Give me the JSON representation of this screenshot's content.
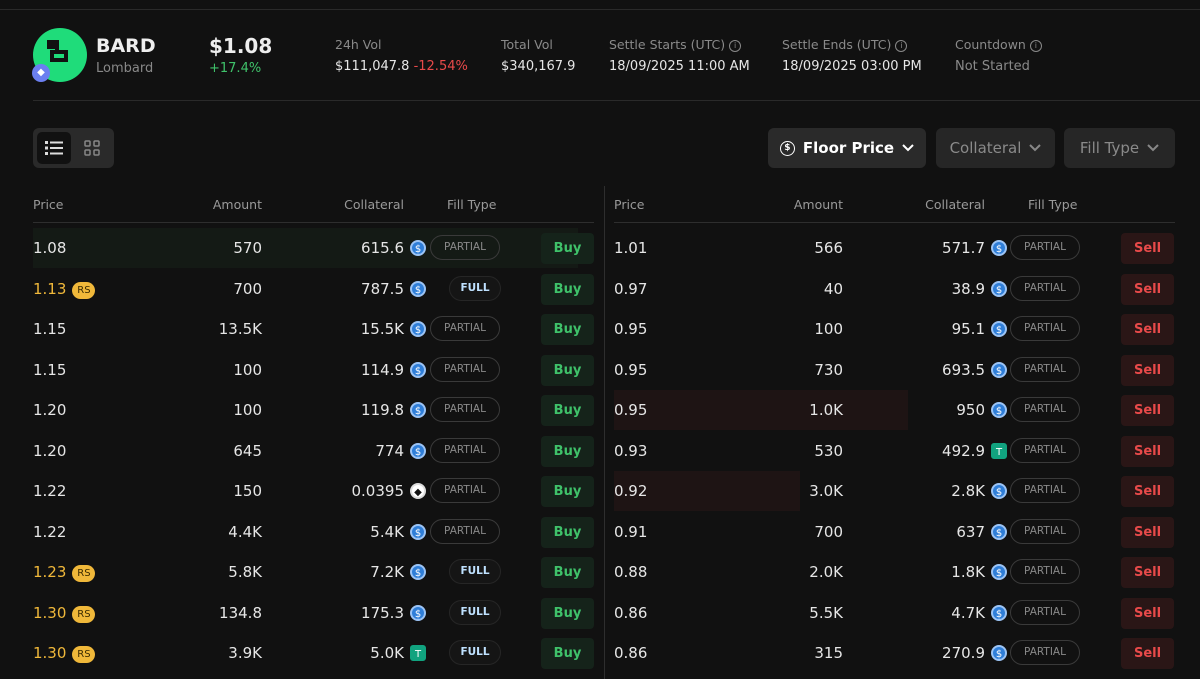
{
  "token": {
    "symbol": "BARD",
    "name": "Lombard",
    "price": "$1.08",
    "change": "+17.4%",
    "logo_color": "#1fdc7a",
    "chain_icon": "ethereum-icon"
  },
  "stats": [
    {
      "label": "24h Vol",
      "value": "$111,047.8",
      "change": "-12.54%"
    },
    {
      "label": "Total Vol",
      "value": "$340,167.9"
    },
    {
      "label": "Settle Starts (UTC)",
      "value": "18/09/2025 11:00 AM",
      "info": true
    },
    {
      "label": "Settle Ends (UTC)",
      "value": "18/09/2025 03:00 PM",
      "info": true
    },
    {
      "label": "Countdown",
      "value": "Not Started",
      "info": true
    }
  ],
  "toolbar": {
    "floor_price": "Floor Price",
    "collateral": "Collateral",
    "fill_type": "Fill Type"
  },
  "columns": {
    "price": "Price",
    "amount": "Amount",
    "collateral": "Collateral",
    "fill_type": "Fill Type"
  },
  "buy_orders": [
    {
      "price": "1.08",
      "amount": "570",
      "collateral": "615.6",
      "coin": "usdc",
      "fill": "PARTIAL",
      "action": "Buy",
      "depth": 1.0
    },
    {
      "price": "1.13",
      "rs": "RS",
      "amount": "700",
      "collateral": "787.5",
      "coin": "usdc",
      "fill": "FULL",
      "action": "Buy"
    },
    {
      "price": "1.15",
      "amount": "13.5K",
      "collateral": "15.5K",
      "coin": "usdc",
      "fill": "PARTIAL",
      "action": "Buy"
    },
    {
      "price": "1.15",
      "amount": "100",
      "collateral": "114.9",
      "coin": "usdc",
      "fill": "PARTIAL",
      "action": "Buy"
    },
    {
      "price": "1.20",
      "amount": "100",
      "collateral": "119.8",
      "coin": "usdc",
      "fill": "PARTIAL",
      "action": "Buy"
    },
    {
      "price": "1.20",
      "amount": "645",
      "collateral": "774",
      "coin": "usdc",
      "fill": "PARTIAL",
      "action": "Buy"
    },
    {
      "price": "1.22",
      "amount": "150",
      "collateral": "0.0395",
      "coin": "eth",
      "fill": "PARTIAL",
      "action": "Buy"
    },
    {
      "price": "1.22",
      "amount": "4.4K",
      "collateral": "5.4K",
      "coin": "usdc",
      "fill": "PARTIAL",
      "action": "Buy"
    },
    {
      "price": "1.23",
      "rs": "RS",
      "amount": "5.8K",
      "collateral": "7.2K",
      "coin": "usdc",
      "fill": "FULL",
      "action": "Buy"
    },
    {
      "price": "1.30",
      "rs": "RS",
      "amount": "134.8",
      "collateral": "175.3",
      "coin": "usdc",
      "fill": "FULL",
      "action": "Buy"
    },
    {
      "price": "1.30",
      "rs": "RS",
      "amount": "3.9K",
      "collateral": "5.0K",
      "coin": "usdt",
      "fill": "FULL",
      "action": "Buy"
    }
  ],
  "sell_orders": [
    {
      "price": "1.01",
      "amount": "566",
      "collateral": "571.7",
      "coin": "usdc",
      "fill": "PARTIAL",
      "action": "Sell"
    },
    {
      "price": "0.97",
      "amount": "40",
      "collateral": "38.9",
      "coin": "usdc",
      "fill": "PARTIAL",
      "action": "Sell"
    },
    {
      "price": "0.95",
      "amount": "100",
      "collateral": "95.1",
      "coin": "usdc",
      "fill": "PARTIAL",
      "action": "Sell"
    },
    {
      "price": "0.95",
      "amount": "730",
      "collateral": "693.5",
      "coin": "usdc",
      "fill": "PARTIAL",
      "action": "Sell"
    },
    {
      "price": "0.95",
      "amount": "1.0K",
      "collateral": "950",
      "coin": "usdc",
      "fill": "PARTIAL",
      "action": "Sell",
      "depth": 0.52
    },
    {
      "price": "0.93",
      "amount": "530",
      "collateral": "492.9",
      "coin": "usdt",
      "fill": "PARTIAL",
      "action": "Sell"
    },
    {
      "price": "0.92",
      "amount": "3.0K",
      "collateral": "2.8K",
      "coin": "usdc",
      "fill": "PARTIAL",
      "action": "Sell",
      "depth": 0.33
    },
    {
      "price": "0.91",
      "amount": "700",
      "collateral": "637",
      "coin": "usdc",
      "fill": "PARTIAL",
      "action": "Sell"
    },
    {
      "price": "0.88",
      "amount": "2.0K",
      "collateral": "1.8K",
      "coin": "usdc",
      "fill": "PARTIAL",
      "action": "Sell"
    },
    {
      "price": "0.86",
      "amount": "5.5K",
      "collateral": "4.7K",
      "coin": "usdc",
      "fill": "PARTIAL",
      "action": "Sell"
    },
    {
      "price": "0.86",
      "amount": "315",
      "collateral": "270.9",
      "coin": "usdc",
      "fill": "PARTIAL",
      "action": "Sell"
    }
  ]
}
